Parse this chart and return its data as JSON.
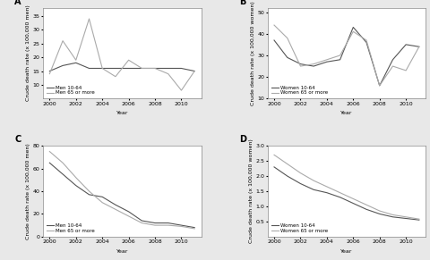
{
  "years": [
    2000,
    2001,
    2002,
    2003,
    2004,
    2005,
    2006,
    2007,
    2008,
    2009,
    2010,
    2011
  ],
  "panel_A": {
    "title": "A",
    "line1_label": "Men 10-64",
    "line2_label": "Men 65 or more",
    "line1_color": "#555555",
    "line2_color": "#aaaaaa",
    "line1": [
      15,
      17,
      18,
      16,
      16,
      16,
      16,
      16,
      16,
      16,
      16,
      15
    ],
    "line2": [
      14,
      26,
      19,
      34,
      16,
      13,
      19,
      16,
      16,
      14,
      8,
      15
    ],
    "ylabel": "Crude death rate (x 100,000 men)",
    "ylim": [
      5,
      38
    ],
    "yticks": [
      10,
      15,
      20,
      25,
      30,
      35
    ]
  },
  "panel_B": {
    "title": "B",
    "line1_label": "Women 10-64",
    "line2_label": "Women 65 or more",
    "line1_color": "#555555",
    "line2_color": "#aaaaaa",
    "line1": [
      37,
      29,
      26,
      25,
      27,
      28,
      43,
      36,
      16,
      28,
      35,
      34
    ],
    "line2": [
      44,
      38,
      25,
      26,
      28,
      30,
      41,
      37,
      16,
      25,
      23,
      34
    ],
    "ylabel": "Crude death rate (x 100,000 women)",
    "ylim": [
      10,
      52
    ],
    "yticks": [
      10,
      20,
      30,
      40,
      50
    ]
  },
  "panel_C": {
    "title": "C",
    "line1_label": "Men 10-64",
    "line2_label": "Men 65 or more",
    "line1_color": "#555555",
    "line2_color": "#aaaaaa",
    "line1": [
      65,
      55,
      45,
      37,
      35,
      28,
      22,
      14,
      12,
      12,
      10,
      8
    ],
    "line2": [
      75,
      65,
      52,
      40,
      30,
      24,
      18,
      12,
      10,
      10,
      9,
      7
    ],
    "ylabel": "Crude death rate (x 100,000 men)",
    "ylim": [
      0,
      80
    ],
    "yticks": [
      0,
      20,
      40,
      60,
      80
    ]
  },
  "panel_D": {
    "title": "D",
    "line1_label": "Women 10-64",
    "line2_label": "Women 65 or more",
    "line1_color": "#555555",
    "line2_color": "#aaaaaa",
    "line1": [
      2.3,
      2.0,
      1.75,
      1.55,
      1.45,
      1.3,
      1.1,
      0.9,
      0.75,
      0.65,
      0.6,
      0.55
    ],
    "line2": [
      2.7,
      2.4,
      2.1,
      1.85,
      1.65,
      1.45,
      1.25,
      1.05,
      0.85,
      0.72,
      0.65,
      0.58
    ],
    "ylabel": "Crude death rate (x 100,000 women)",
    "ylim": [
      0.0,
      3.0
    ],
    "yticks": [
      0.5,
      1.0,
      1.5,
      2.0,
      2.5,
      3.0
    ]
  },
  "xlabel": "Year",
  "xticks": [
    2000,
    2002,
    2004,
    2006,
    2008,
    2010
  ],
  "outer_bg": "#e8e8e8",
  "inner_bg": "#ffffff",
  "linewidth": 0.8,
  "fontsize_label": 4.5,
  "fontsize_tick": 4.5,
  "fontsize_legend": 4.0,
  "fontsize_panel": 7
}
